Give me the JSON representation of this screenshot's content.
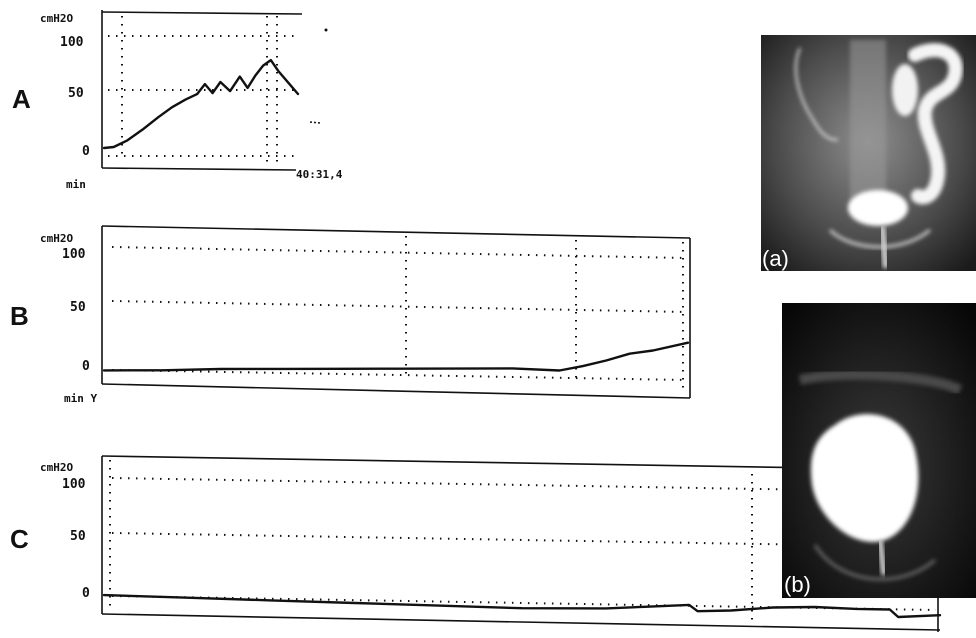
{
  "panels": [
    {
      "id": "A",
      "letter": "A",
      "unit": "cmH2O",
      "xlabel": "min",
      "time_label": "40:31,4",
      "y_ticks": [
        "100",
        "50",
        "0"
      ],
      "ylim": [
        -10,
        110
      ]
    },
    {
      "id": "B",
      "letter": "B",
      "unit": "cmH2O",
      "xlabel": "min Y",
      "y_ticks": [
        "100",
        "50",
        "0"
      ],
      "ylim": [
        -10,
        115
      ]
    },
    {
      "id": "C",
      "letter": "C",
      "unit": "cmH2O",
      "xlabel": "",
      "y_ticks": [
        "100",
        "50",
        "0"
      ],
      "ylim": [
        -10,
        115
      ]
    }
  ],
  "images": [
    {
      "id": "a",
      "label": "(a)"
    },
    {
      "id": "b",
      "label": "(b)"
    }
  ],
  "chart_data": [
    {
      "type": "line",
      "title": "",
      "ylabel": "cmH2O",
      "xlabel": "min",
      "ylim": [
        -10,
        110
      ],
      "xlim": [
        0,
        1
      ],
      "grid": true,
      "series": [
        {
          "x": [
            0,
            0.05,
            0.12,
            0.2,
            0.28,
            0.35,
            0.42,
            0.48,
            0.52,
            0.56,
            0.6,
            0.65,
            0.7,
            0.74,
            0.78,
            0.82,
            0.86,
            0.9,
            0.95,
            1.0
          ],
          "y": [
            0,
            1,
            7,
            17,
            28,
            37,
            44,
            49,
            58,
            50,
            60,
            52,
            65,
            55,
            66,
            75,
            80,
            70,
            60,
            50
          ]
        }
      ]
    },
    {
      "type": "line",
      "title": "",
      "ylabel": "cmH2O",
      "xlabel": "min",
      "ylim": [
        -10,
        115
      ],
      "xlim": [
        0,
        1
      ],
      "grid": true,
      "series": [
        {
          "x": [
            0,
            0.1,
            0.2,
            0.3,
            0.4,
            0.5,
            0.6,
            0.7,
            0.78,
            0.82,
            0.86,
            0.9,
            0.94,
            1.0
          ],
          "y": [
            -2,
            -1,
            1,
            2,
            3,
            4,
            5,
            6,
            5,
            9,
            14,
            20,
            23,
            30
          ]
        }
      ]
    },
    {
      "type": "line",
      "title": "",
      "ylabel": "cmH2O",
      "xlabel": "",
      "ylim": [
        -10,
        115
      ],
      "xlim": [
        0,
        1
      ],
      "grid": true,
      "series": [
        {
          "x": [
            0,
            0.1,
            0.2,
            0.3,
            0.4,
            0.5,
            0.6,
            0.65,
            0.7,
            0.71,
            0.75,
            0.8,
            0.85,
            0.9,
            0.94,
            0.95,
            1.0
          ],
          "y": [
            4,
            3,
            2,
            1,
            0,
            -1,
            0,
            2,
            4,
            -1,
            0,
            3,
            4,
            3,
            3,
            -3,
            -1
          ]
        }
      ]
    }
  ]
}
